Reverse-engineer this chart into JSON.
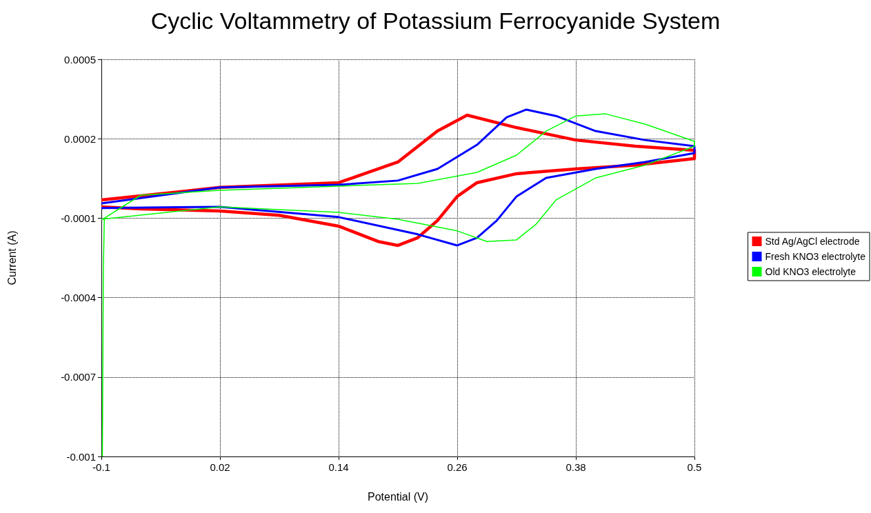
{
  "chart_data": {
    "type": "line",
    "title": "Cyclic Voltammetry of Potassium Ferrocyanide System",
    "xlabel": "Potential (V)",
    "ylabel": "Current (A)",
    "xlim": [
      -0.1,
      0.5
    ],
    "xticks": [
      -0.1,
      0.02,
      0.14,
      0.26,
      0.38,
      0.5
    ],
    "ylim": [
      -0.001,
      0.0005
    ],
    "yticks": [
      -0.001,
      -0.0007,
      -0.0004,
      -0.0001,
      0.0002,
      0.0005
    ],
    "grid": true,
    "legend": "right",
    "marker": "none",
    "line_style": "solid",
    "series": [
      {
        "name": "Std Ag/AgCl electrode",
        "color": "#ff0000",
        "x": [
          -0.1,
          0.02,
          0.14,
          0.2,
          0.24,
          0.27,
          0.32,
          0.38,
          0.44,
          0.5,
          0.5,
          0.44,
          0.38,
          0.32,
          0.28,
          0.26,
          0.24,
          0.22,
          0.2,
          0.18,
          0.14,
          0.08,
          0.02,
          -0.06,
          -0.1
        ],
        "values": [
          -3.1e-05,
          1.6e-05,
          3.4e-05,
          0.000112,
          0.000229,
          0.000289,
          0.000242,
          0.000195,
          0.000172,
          0.000156,
          0.000125,
          0.0001,
          8.6e-05,
          6.8e-05,
          3.4e-05,
          -1.8e-05,
          -0.000109,
          -0.000174,
          -0.000203,
          -0.000188,
          -0.00013,
          -8.9e-05,
          -7.3e-05,
          -6.5e-05,
          -5.7e-05
        ]
      },
      {
        "name": "Fresh KNO3 electrolyte",
        "color": "#0000ff",
        "x": [
          -0.1,
          0.02,
          0.14,
          0.2,
          0.24,
          0.28,
          0.31,
          0.33,
          0.36,
          0.4,
          0.45,
          0.5,
          0.5,
          0.45,
          0.4,
          0.35,
          0.32,
          0.3,
          0.28,
          0.26,
          0.22,
          0.14,
          0.02,
          -0.1
        ],
        "values": [
          -4.4e-05,
          1.6e-05,
          2.6e-05,
          4.2e-05,
          8.6e-05,
          0.000177,
          0.000281,
          0.00031,
          0.000286,
          0.000229,
          0.000195,
          0.000172,
          0.000146,
          0.000112,
          8.6e-05,
          5.2e-05,
          -1.8e-05,
          -0.000109,
          -0.000174,
          -0.000203,
          -0.000161,
          -9.6e-05,
          -5.7e-05,
          -6.2e-05
        ]
      },
      {
        "name": "Old KNO3 electrolyte",
        "color": "#00ff00",
        "x": [
          -0.099,
          -0.098,
          -0.097,
          -0.06,
          0.02,
          0.14,
          0.22,
          0.28,
          0.32,
          0.35,
          0.38,
          0.41,
          0.45,
          0.5,
          0.5,
          0.45,
          0.4,
          0.36,
          0.34,
          0.32,
          0.29,
          0.26,
          0.2,
          0.14,
          0.02,
          -0.1
        ],
        "values": [
          -0.001,
          -0.0003,
          -0.0001,
          -1.3e-05,
          5e-06,
          2.1e-05,
          3.1e-05,
          7.3e-05,
          0.000138,
          0.000229,
          0.000286,
          0.000294,
          0.000255,
          0.00019,
          0.000172,
          0.0001,
          5.2e-05,
          -3.1e-05,
          -0.000122,
          -0.000182,
          -0.000188,
          -0.000148,
          -0.000104,
          -7.8e-05,
          -5.7e-05,
          -0.000104
        ]
      }
    ]
  }
}
